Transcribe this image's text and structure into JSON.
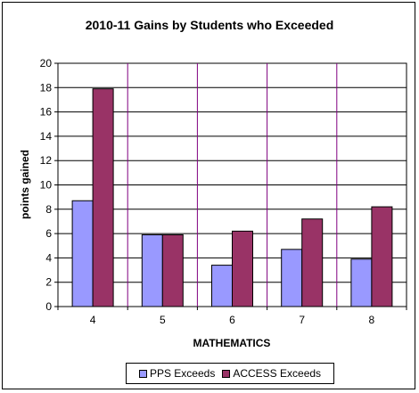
{
  "chart_data": {
    "type": "bar",
    "title": "2010-11 Gains by Students who Exceeded",
    "xlabel": "MATHEMATICS",
    "ylabel": "points gained",
    "categories": [
      "4",
      "5",
      "6",
      "7",
      "8"
    ],
    "ylim": [
      0,
      20
    ],
    "yticks": [
      "0",
      "2",
      "4",
      "6",
      "8",
      "10",
      "12",
      "14",
      "16",
      "18",
      "20"
    ],
    "grid": true,
    "legend_position": "bottom",
    "series": [
      {
        "name": "PPS Exceeds",
        "color": "#9999ff",
        "values": [
          8.7,
          5.9,
          3.4,
          4.7,
          3.9
        ]
      },
      {
        "name": "ACCESS Exceeds",
        "color": "#993366",
        "values": [
          17.9,
          5.9,
          6.2,
          7.2,
          8.2
        ]
      }
    ]
  }
}
